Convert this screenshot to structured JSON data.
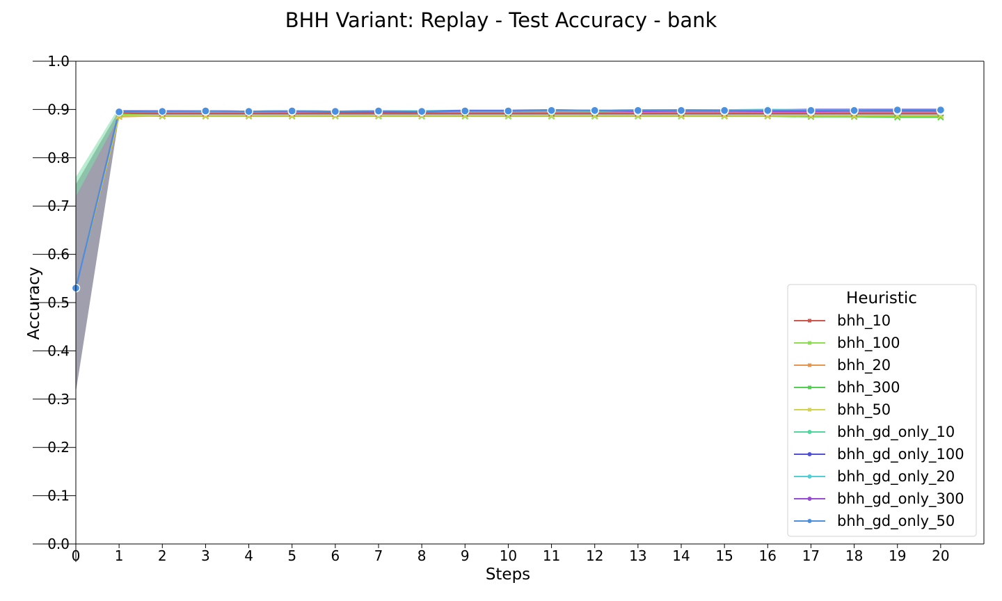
{
  "chart_data": {
    "type": "line",
    "title": "BHH Variant: Replay - Test Accuracy - bank",
    "xlabel": "Steps",
    "ylabel": "Accuracy",
    "xlim": [
      0,
      21
    ],
    "ylim": [
      0.0,
      1.0
    ],
    "x": [
      0,
      1,
      2,
      3,
      4,
      5,
      6,
      7,
      8,
      9,
      10,
      11,
      12,
      13,
      14,
      15,
      16,
      17,
      18,
      19,
      20
    ],
    "xticks": [
      "0",
      "1",
      "2",
      "3",
      "4",
      "5",
      "6",
      "7",
      "8",
      "9",
      "10",
      "11",
      "12",
      "13",
      "14",
      "15",
      "16",
      "17",
      "18",
      "19",
      "20"
    ],
    "yticks": [
      "0.0",
      "0.1",
      "0.2",
      "0.3",
      "0.4",
      "0.5",
      "0.6",
      "0.7",
      "0.8",
      "0.9",
      "1.0"
    ],
    "grid": false,
    "legend": {
      "title": "Heuristic",
      "placement": "lower-right"
    },
    "band_color": "#8e8ea0",
    "series": [
      {
        "name": "bhh_10",
        "color": "#d0544a",
        "marker": "x",
        "values": [
          0.53,
          0.892,
          0.892,
          0.892,
          0.892,
          0.892,
          0.892,
          0.892,
          0.892,
          0.892,
          0.892,
          0.892,
          0.892,
          0.892,
          0.892,
          0.892,
          0.892,
          0.892,
          0.892,
          0.892,
          0.892
        ]
      },
      {
        "name": "bhh_100",
        "color": "#8be04e",
        "marker": "x",
        "values": [
          0.53,
          0.89,
          0.887,
          0.887,
          0.887,
          0.887,
          0.887,
          0.887,
          0.887,
          0.887,
          0.887,
          0.887,
          0.887,
          0.887,
          0.887,
          0.887,
          0.887,
          0.887,
          0.887,
          0.887,
          0.887
        ]
      },
      {
        "name": "bhh_20",
        "color": "#e8944a",
        "marker": "x",
        "values": [
          0.53,
          0.885,
          0.887,
          0.887,
          0.887,
          0.887,
          0.887,
          0.887,
          0.887,
          0.887,
          0.887,
          0.887,
          0.887,
          0.887,
          0.887,
          0.887,
          0.887,
          0.887,
          0.887,
          0.887,
          0.887
        ]
      },
      {
        "name": "bhh_300",
        "color": "#4fd34f",
        "marker": "x",
        "values": [
          0.53,
          0.888,
          0.886,
          0.886,
          0.886,
          0.886,
          0.886,
          0.886,
          0.886,
          0.886,
          0.886,
          0.886,
          0.886,
          0.886,
          0.886,
          0.886,
          0.886,
          0.885,
          0.885,
          0.884,
          0.884
        ]
      },
      {
        "name": "bhh_50",
        "color": "#d4d44a",
        "marker": "x",
        "values": [
          0.53,
          0.887,
          0.887,
          0.887,
          0.887,
          0.887,
          0.887,
          0.887,
          0.887,
          0.887,
          0.887,
          0.887,
          0.887,
          0.887,
          0.887,
          0.887,
          0.887,
          0.887,
          0.887,
          0.887,
          0.887
        ]
      },
      {
        "name": "bhh_gd_only_10",
        "color": "#4ed8a0",
        "marker": "o",
        "values": [
          0.53,
          0.895,
          0.896,
          0.896,
          0.896,
          0.897,
          0.896,
          0.897,
          0.897,
          0.897,
          0.897,
          0.898,
          0.897,
          0.897,
          0.898,
          0.898,
          0.898,
          0.898,
          0.898,
          0.898,
          0.898
        ]
      },
      {
        "name": "bhh_gd_only_100",
        "color": "#5050d8",
        "marker": "o",
        "values": [
          0.53,
          0.897,
          0.897,
          0.897,
          0.896,
          0.897,
          0.896,
          0.897,
          0.897,
          0.898,
          0.898,
          0.899,
          0.898,
          0.899,
          0.899,
          0.899,
          0.899,
          0.9,
          0.9,
          0.9,
          0.9
        ]
      },
      {
        "name": "bhh_gd_only_20",
        "color": "#4ed0d8",
        "marker": "o",
        "values": [
          0.53,
          0.895,
          0.896,
          0.896,
          0.896,
          0.897,
          0.896,
          0.897,
          0.897,
          0.897,
          0.897,
          0.898,
          0.898,
          0.899,
          0.898,
          0.899,
          0.9,
          0.899,
          0.899,
          0.899,
          0.899
        ]
      },
      {
        "name": "bhh_gd_only_300",
        "color": "#9a48d8",
        "marker": "o",
        "values": [
          0.53,
          0.895,
          0.896,
          0.897,
          0.896,
          0.896,
          0.895,
          0.895,
          0.895,
          0.897,
          0.897,
          0.899,
          0.898,
          0.896,
          0.897,
          0.897,
          0.896,
          0.896,
          0.897,
          0.897,
          0.897
        ]
      },
      {
        "name": "bhh_gd_only_50",
        "color": "#4a90e0",
        "marker": "o",
        "values": [
          0.53,
          0.895,
          0.896,
          0.897,
          0.896,
          0.897,
          0.896,
          0.897,
          0.896,
          0.897,
          0.897,
          0.898,
          0.898,
          0.898,
          0.898,
          0.898,
          0.898,
          0.898,
          0.898,
          0.899,
          0.899
        ]
      }
    ]
  }
}
